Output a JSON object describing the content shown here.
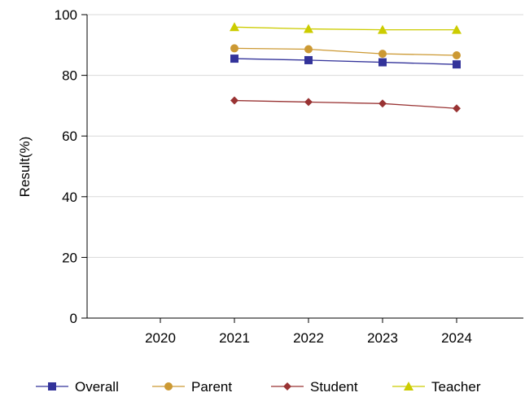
{
  "chart_data": {
    "type": "line",
    "ylabel": "Result(%)",
    "xlabel": "",
    "title": "",
    "x": [
      "2020",
      "2021",
      "2022",
      "2023",
      "2024"
    ],
    "ylim": [
      0,
      100
    ],
    "yticks": [
      "0",
      "20",
      "40",
      "60",
      "80",
      "100"
    ],
    "grid": "horizontal",
    "legend_position": "bottom",
    "series": [
      {
        "name": "Overall",
        "color": "#33339a",
        "marker": "square",
        "values": [
          null,
          85.5,
          85.0,
          84.3,
          83.6
        ]
      },
      {
        "name": "Parent",
        "color": "#cc9933",
        "marker": "circle",
        "values": [
          null,
          88.9,
          88.6,
          87.1,
          86.6
        ]
      },
      {
        "name": "Student",
        "color": "#993333",
        "marker": "diamond",
        "values": [
          null,
          71.7,
          71.2,
          70.7,
          69.1
        ]
      },
      {
        "name": "Teacher",
        "color": "#cccc00",
        "marker": "triangle",
        "values": [
          null,
          95.9,
          95.3,
          95.0,
          95.0
        ]
      }
    ]
  }
}
